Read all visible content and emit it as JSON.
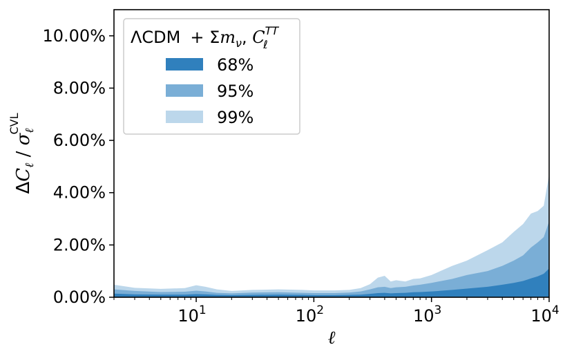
{
  "chart_data": {
    "type": "area",
    "title": "",
    "xlabel": "ℓ",
    "ylabel": "ΔCℓ / σℓ^CVL",
    "x_scale": "log",
    "xlim": [
      2,
      10000
    ],
    "ylim": [
      0,
      0.11
    ],
    "x_ticks": [
      {
        "value": 10,
        "base": "10",
        "exp": "1"
      },
      {
        "value": 100,
        "base": "10",
        "exp": "2"
      },
      {
        "value": 1000,
        "base": "10",
        "exp": "3"
      },
      {
        "value": 10000,
        "base": "10",
        "exp": "4"
      }
    ],
    "y_ticks": [
      {
        "value": 0.0,
        "label": "0.00%"
      },
      {
        "value": 0.02,
        "label": "2.00%"
      },
      {
        "value": 0.04,
        "label": "4.00%"
      },
      {
        "value": 0.06,
        "label": "6.00%"
      },
      {
        "value": 0.08,
        "label": "8.00%"
      },
      {
        "value": 0.1,
        "label": "10.00%"
      }
    ],
    "grid": false,
    "legend": {
      "placement": "top-left",
      "title": "ΛCDM + Σmν, Cℓ^TT",
      "title_parts": {
        "model": "ΛCDM",
        "plus": "+ Σ",
        "m": "m",
        "nu": "ν",
        "comma": ", ",
        "C": "C",
        "sup": "TT",
        "sub": "ℓ"
      }
    },
    "x": [
      2,
      3,
      5,
      8,
      10,
      12,
      15,
      20,
      30,
      50,
      80,
      100,
      150,
      200,
      250,
      300,
      350,
      400,
      450,
      500,
      600,
      700,
      800,
      1000,
      1500,
      2000,
      3000,
      4000,
      5000,
      6000,
      7000,
      8000,
      9000,
      10000
    ],
    "series": [
      {
        "name": "99%",
        "color": "#bcd7eb",
        "values": [
          0.0048,
          0.0036,
          0.0032,
          0.0035,
          0.0046,
          0.004,
          0.003,
          0.0024,
          0.0028,
          0.003,
          0.0028,
          0.0026,
          0.0026,
          0.0028,
          0.0035,
          0.005,
          0.0075,
          0.0082,
          0.006,
          0.0065,
          0.006,
          0.007,
          0.0072,
          0.0085,
          0.012,
          0.014,
          0.018,
          0.021,
          0.025,
          0.028,
          0.032,
          0.033,
          0.035,
          0.047
        ]
      },
      {
        "name": "95%",
        "color": "#7aaed6",
        "values": [
          0.003,
          0.0024,
          0.002,
          0.0021,
          0.0025,
          0.0022,
          0.0017,
          0.0015,
          0.0018,
          0.0019,
          0.0017,
          0.0016,
          0.0016,
          0.0018,
          0.0022,
          0.003,
          0.0038,
          0.004,
          0.0035,
          0.0038,
          0.004,
          0.0045,
          0.0048,
          0.0055,
          0.007,
          0.0085,
          0.01,
          0.012,
          0.014,
          0.016,
          0.019,
          0.021,
          0.023,
          0.029
        ]
      },
      {
        "name": "68%",
        "color": "#3080bd",
        "values": [
          0.0014,
          0.0011,
          0.001,
          0.001,
          0.0012,
          0.0011,
          0.0009,
          0.0008,
          0.0009,
          0.001,
          0.0009,
          0.0008,
          0.0008,
          0.0009,
          0.001,
          0.0013,
          0.0016,
          0.0017,
          0.0015,
          0.0016,
          0.0017,
          0.0019,
          0.002,
          0.0022,
          0.0028,
          0.0033,
          0.004,
          0.0048,
          0.0055,
          0.0062,
          0.0072,
          0.008,
          0.009,
          0.011
        ]
      }
    ],
    "legend_entries": [
      {
        "label": "68%",
        "color": "#3080bd"
      },
      {
        "label": "95%",
        "color": "#7aaed6"
      },
      {
        "label": "99%",
        "color": "#bcd7eb"
      }
    ]
  }
}
